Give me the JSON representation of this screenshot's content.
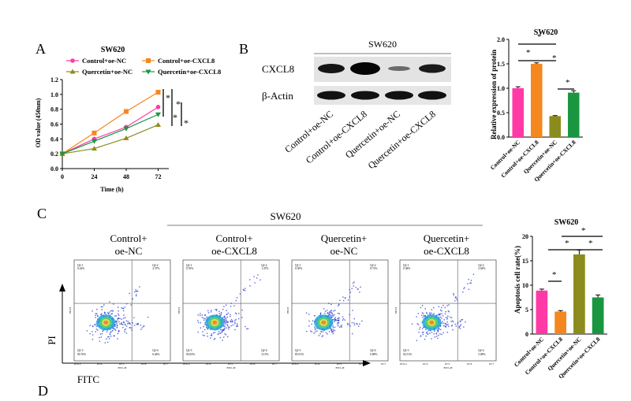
{
  "panels": {
    "a": "A",
    "b": "B",
    "c": "C",
    "d": "D"
  },
  "line_plot": {
    "title": "SW620",
    "xlabel": "Time (h)",
    "ylabel": "OD value (450nm)",
    "legend": [
      "Control+oe-NC",
      "Control+oe-CXCL8",
      "Quercetin+oe-NC",
      "Quercetin+oe-CXCL8"
    ],
    "sig": [
      "*",
      "*",
      "*",
      "*"
    ]
  },
  "western": {
    "title": "SW620",
    "bands": [
      "CXCL8",
      "β-Actin"
    ],
    "lanes": [
      "Control+oe-NC",
      "Control+oe-CXCL8",
      "Quercetin+oe-NC",
      "Quercetin+oe-CXCL8"
    ]
  },
  "bar_b": {
    "sig": [
      "*",
      "*",
      "*",
      "*"
    ]
  },
  "flow": {
    "title": "SW620",
    "panels": [
      {
        "title": [
          "Control+",
          "oe-NC"
        ],
        "q1": "Q2-1",
        "q1v": "0.42%",
        "q2": "Q2-2",
        "q2v": "2.37%",
        "q3": "Q2-3",
        "q3v": "90.76%",
        "q4": "Q2-4",
        "q4v": "6.46%"
      },
      {
        "title": [
          "Control+",
          "oe-CXCL8"
        ],
        "q1": "Q2-1",
        "q1v": "0.55%",
        "q2": "Q2-2",
        "q2v": "1.47%",
        "q3": "Q2-3",
        "q3v": "94.83%",
        "q4": "Q2-4",
        "q4v": "3.15%"
      },
      {
        "title": [
          "Quercetin+",
          "oe-NC"
        ],
        "q1": "Q2-1",
        "q1v": "0.50%",
        "q2": "Q2-2",
        "q2v": "8.72%",
        "q3": "Q2-3",
        "q3v": "83.91%",
        "q4": "Q2-4",
        "q4v": "6.88%"
      },
      {
        "title": [
          "Quercetin+",
          "oe-CXCL8"
        ],
        "q1": "Q2-1",
        "q1v": "0.38%",
        "q2": "Q2-2",
        "q2v": "2.04%",
        "q3": "Q2-3",
        "q3v": "92.51%",
        "q4": "Q2-4",
        "q4v": "5.08%"
      }
    ],
    "xaxis_label": "FITC",
    "yaxis_label": "PI",
    "small_x": "FITC-H",
    "small_y": "PE-H",
    "ticks": [
      "10^0.2",
      "10^4",
      "10^5",
      "10^6",
      "10^7"
    ]
  },
  "bar_c": {
    "sig": [
      "*",
      "*",
      "*",
      "*"
    ]
  },
  "colors": {
    "ctrl_nc": "#ff3aa6",
    "ctrl_cxcl8": "#f5871f",
    "quer_nc": "#8c8c1e",
    "quer_cxcl8": "#1a9641",
    "dot": "#2a3fd6"
  },
  "chart_data": [
    {
      "type": "line",
      "title": "SW620",
      "xlabel": "Time (h)",
      "ylabel": "OD value (450nm)",
      "x": [
        0,
        24,
        48,
        72
      ],
      "xlim": [
        0,
        80
      ],
      "ylim": [
        0,
        1.2
      ],
      "yticks": [
        0.0,
        0.2,
        0.4,
        0.6,
        0.8,
        1.0,
        1.2
      ],
      "xticks": [
        0,
        24,
        48,
        72
      ],
      "series": [
        {
          "name": "Control+oe-NC",
          "values": [
            0.2,
            0.4,
            0.56,
            0.83
          ],
          "marker": "circle"
        },
        {
          "name": "Control+oe-CXCL8",
          "values": [
            0.2,
            0.48,
            0.77,
            1.03
          ],
          "marker": "square"
        },
        {
          "name": "Quercetin+oe-NC",
          "values": [
            0.2,
            0.27,
            0.41,
            0.59
          ],
          "marker": "triangle-up"
        },
        {
          "name": "Quercetin+oe-CXCL8",
          "values": [
            0.2,
            0.37,
            0.54,
            0.73
          ],
          "marker": "triangle-down"
        }
      ]
    },
    {
      "type": "bar",
      "title": "SW620",
      "ylabel": "Relative expression of protein",
      "categories": [
        "Control+oe-NC",
        "Control+oe-CXCL8",
        "Quercetin+oe-NC",
        "Quercetin+oe-CXCL8"
      ],
      "values": [
        1.0,
        1.5,
        0.43,
        0.91
      ],
      "errors": [
        0.03,
        0.02,
        0.01,
        0.04
      ],
      "ylim": [
        0,
        2.0
      ],
      "yticks": [
        0.0,
        0.5,
        1.0,
        1.5,
        2.0
      ]
    },
    {
      "type": "bar",
      "title": "SW620",
      "ylabel": "Apoptosis cell rate(%)",
      "categories": [
        "Control+oe-NC",
        "Control+oe-CXCL8",
        "Quercetin+oe-NC",
        "Quercetin+oe-CXCL8"
      ],
      "values": [
        8.9,
        4.6,
        16.3,
        7.5
      ],
      "errors": [
        0.3,
        0.2,
        0.9,
        0.5
      ],
      "ylim": [
        0,
        20
      ],
      "yticks": [
        0,
        5,
        10,
        15,
        20
      ]
    }
  ]
}
